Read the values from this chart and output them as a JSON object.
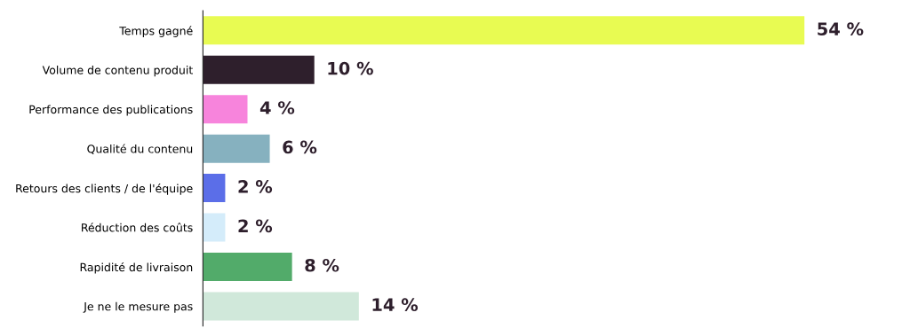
{
  "chart_data": {
    "type": "bar",
    "orientation": "horizontal",
    "categories": [
      "Temps gagné",
      "Volume de contenu produit",
      "Performance des publications",
      "Qualité du contenu",
      "Retours des clients / de l'équipe",
      "Réduction des coûts",
      "Rapidité de livraison",
      "Je ne le mesure pas"
    ],
    "values": [
      54,
      10,
      4,
      6,
      2,
      2,
      8,
      14
    ],
    "colors": [
      "#e8fb52",
      "#2e1f2c",
      "#f784dc",
      "#86b1bf",
      "#5b6ee8",
      "#d4ecfa",
      "#52ab6a",
      "#d0e8da"
    ],
    "value_labels": [
      "54 %",
      "10 %",
      "4 %",
      "6 %",
      "2 %",
      "2 %",
      "8 %",
      "14 %"
    ]
  }
}
